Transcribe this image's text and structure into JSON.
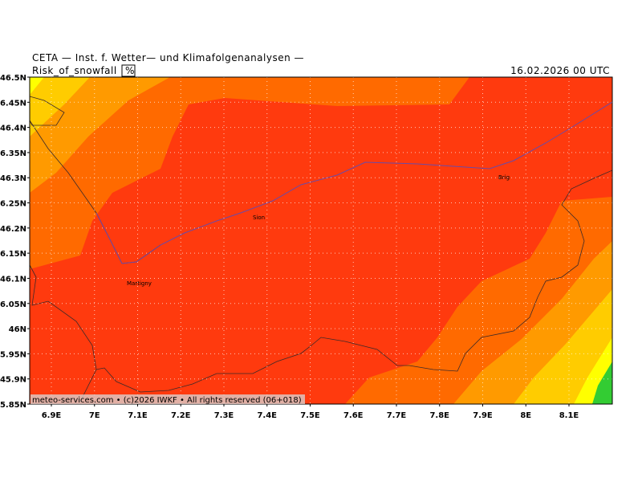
{
  "header": "CETA — Inst. f. Wetter— und Klimafolgenanalysen —",
  "title": "Risk_of_snowfall",
  "unit": "%",
  "valid_time": "16.02.2026 00 UTC",
  "lat_ticks": [
    {
      "value": 46.5,
      "label": "46.5N"
    },
    {
      "value": 46.45,
      "label": "46.45N"
    },
    {
      "value": 46.4,
      "label": "46.4N"
    },
    {
      "value": 46.35,
      "label": "46.35N"
    },
    {
      "value": 46.3,
      "label": "46.3N"
    },
    {
      "value": 46.25,
      "label": "46.25N"
    },
    {
      "value": 46.2,
      "label": "46.2N"
    },
    {
      "value": 46.15,
      "label": "46.15N"
    },
    {
      "value": 46.1,
      "label": "46.1N"
    },
    {
      "value": 46.05,
      "label": "46.05N"
    },
    {
      "value": 46,
      "label": "46N"
    },
    {
      "value": 45.95,
      "label": "45.95N"
    },
    {
      "value": 45.9,
      "label": "45.9N"
    },
    {
      "value": 45.85,
      "label": "45.85N"
    }
  ],
  "lon_ticks": [
    {
      "value": 6.9,
      "label": "6.9E"
    },
    {
      "value": 7,
      "label": "7E"
    },
    {
      "value": 7.1,
      "label": "7.1E"
    },
    {
      "value": 7.2,
      "label": "7.2E"
    },
    {
      "value": 7.3,
      "label": "7.3E"
    },
    {
      "value": 7.4,
      "label": "7.4E"
    },
    {
      "value": 7.5,
      "label": "7.5E"
    },
    {
      "value": 7.6,
      "label": "7.6E"
    },
    {
      "value": 7.7,
      "label": "7.7E"
    },
    {
      "value": 7.8,
      "label": "7.8E"
    },
    {
      "value": 7.9,
      "label": "7.9E"
    },
    {
      "value": 8,
      "label": "8E"
    },
    {
      "value": 8.1,
      "label": "8.1E"
    }
  ],
  "places": [
    {
      "name": "Sion"
    },
    {
      "name": "Martigny"
    },
    {
      "name": "Brig"
    }
  ],
  "footer": "meteo-services.com • (c)2026 IWKF • All rights reserved (06+018)"
}
